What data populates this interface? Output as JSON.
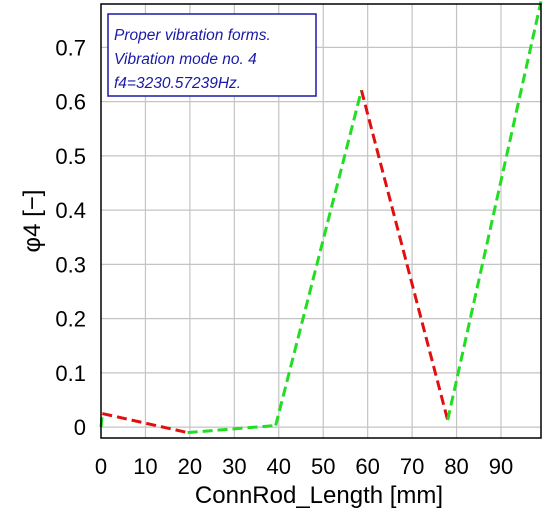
{
  "chart_data": {
    "type": "line",
    "xlabel": "ConnRod_Length [mm]",
    "ylabel": "φ4 [−]",
    "xlim": [
      0,
      99
    ],
    "ylim": [
      -0.02,
      0.78
    ],
    "xticks": [
      "0",
      "10",
      "20",
      "30",
      "40",
      "50",
      "60",
      "70",
      "80",
      "90"
    ],
    "yticks": [
      "0",
      "0.1",
      "0.2",
      "0.3",
      "0.4",
      "0.5",
      "0.6",
      "0.7"
    ],
    "grid": true,
    "line_style": "dashed",
    "colors": {
      "increasing": "#22dd22",
      "decreasing": "#e01010",
      "grid": "#c4c4c4",
      "legend": "#1a1aa6"
    },
    "points": [
      {
        "x": 0.0,
        "y": 0.0
      },
      {
        "x": 0.3,
        "y": 0.025
      },
      {
        "x": 19.5,
        "y": -0.01
      },
      {
        "x": 39.3,
        "y": 0.003
      },
      {
        "x": 58.6,
        "y": 0.621
      },
      {
        "x": 78.0,
        "y": 0.013
      },
      {
        "x": 99.0,
        "y": 0.785
      }
    ],
    "annotation": {
      "lines": [
        "Proper vibration forms.",
        "Vibration mode no. 4",
        "f4=3230.57239Hz."
      ],
      "placement": "top-left"
    }
  }
}
